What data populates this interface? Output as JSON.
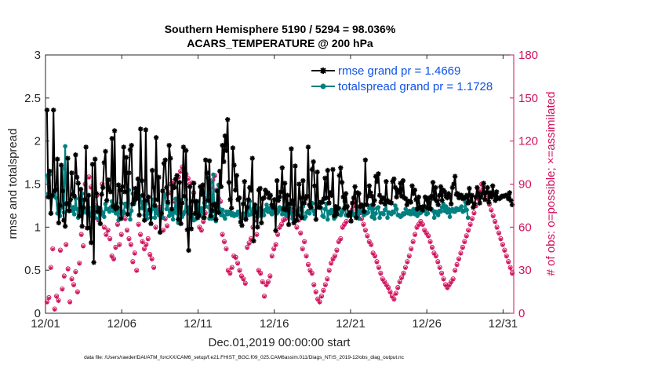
{
  "chart_data": {
    "type": "line",
    "title_line1": "Southern Hemisphere 5190 / 5294 = 98.036%",
    "title_line2": "ACARS_TEMPERATURE @ 200 hPa",
    "xlabel": "Dec.01,2019 00:00:00 start",
    "ylabel_left": "rmse and totalspread",
    "ylabel_right": "# of obs: o=possible; ×=assimilated",
    "footnote": "data file: /Users/raeder/DAI/ATM_forcXX/CAM6_setup/f.e21.FHIST_BGC.f09_025.CAM6assim.011/Diags_NTrS_2019-12/obs_diag_output.nc",
    "x_ticks": [
      0,
      5,
      10,
      15,
      20,
      25,
      30
    ],
    "x_tick_labels": [
      "12/01",
      "12/06",
      "12/11",
      "12/16",
      "12/21",
      "12/26",
      "12/31"
    ],
    "xlim": [
      0,
      30.7
    ],
    "ylim_left": [
      0,
      3
    ],
    "y_ticks_left": [
      0,
      0.5,
      1,
      1.5,
      2,
      2.5,
      3
    ],
    "y_tick_labels_left": [
      "0",
      "0.5",
      "1",
      "1.5",
      "2",
      "2.5",
      "3"
    ],
    "ylim_right": [
      0,
      180
    ],
    "y_ticks_right": [
      0,
      30,
      60,
      90,
      120,
      150,
      180
    ],
    "y_tick_labels_right": [
      "0",
      "30",
      "60",
      "90",
      "120",
      "150",
      "180"
    ],
    "legend_location": "top-right",
    "colors": {
      "rmse": "#000000",
      "spread": "#008080",
      "obs": "#d0115c",
      "legend_text": "#0f52e6"
    },
    "series": [
      {
        "name": "rmse grand pr = 1.4669",
        "key": "rmse",
        "values": [
          2.36,
          1.35,
          1.65,
          1.16,
          1.37,
          2.36,
          1.42,
          1.44,
          1.79,
          1.05,
          1.25,
          1.72,
          1.42,
          1.08,
          1.01,
          1.27,
          1.8,
          1.19,
          1.32,
          1.63,
          1.38,
          1.36,
          1.84,
          1.58,
          1.51,
          1.13,
          1.44,
          1.01,
          1.23,
          1.32,
          1.93,
          0.99,
          1.37,
          0.99,
          0.82,
          1.73,
          0.59,
          1.79,
          1.39,
          1.18,
          1.22,
          1.04,
          1.38,
          1.46,
          1.75,
          1.88,
          1.31,
          1.55,
          1.44,
          1.41,
          2.03,
          1.24,
          2.12,
          1.21,
          1.23,
          1.49,
          1.43,
          1.1,
          1.47,
          1.93,
          1.41,
          1.81,
          1.15,
          1.63,
          1.9,
          1.95,
          1.27,
          1.3,
          1.45,
          1.33,
          1.56,
          1.14,
          2.14,
          1.54,
          1.37,
          1.08,
          2.13,
          1.31,
          1.35,
          1.2,
          1.04,
          1.66,
          1.46,
          1.25,
          2.04,
          1.32,
          1.58,
          0.94,
          1.16,
          1.42,
          1.74,
          1.78,
          1.46,
          1.29,
          1.95,
          1.8,
          1.21,
          1.48,
          1.46,
          1.56,
          1.6,
          1.09,
          1.52,
          1.04,
          1.28,
          1.93,
          1.36,
          1.89,
          0.97,
          0.73,
          1.47,
          0.98,
          1.3,
          1.51,
          1.16,
          1.3,
          1.11,
          1.14,
          1.47,
          1.38,
          1.49,
          1.11,
          1.78,
          1.63,
          1.31,
          1.77,
          1.13,
          1.19,
          1.26,
          1.27,
          1.09,
          1.42,
          1.17,
          1.65,
          1.47,
          1.95,
          1.76,
          2.06,
          1.89,
          2.25,
          1.52,
          1.32,
          1.22,
          1.92,
          1.72,
          1.43,
          1.6,
          1.32,
          1.34,
          1.06,
          1.02,
          1.27,
          1.53,
          1.09,
          1.23,
          1.32,
          1.46,
          1.43,
          1.8,
          0.84,
          1.26,
          1.17,
          1.0,
          1.43,
          1.45,
          1.05,
          1.33,
          1.34,
          1.43,
          1.39,
          1.4,
          1.34,
          1.37,
          1.26,
          1.23,
          1.32,
          0.96,
          1.54,
          1.31,
          1.35,
          1.41,
          1.69,
          1.21,
          1.51,
          1.2,
          1.37,
          1.03,
          1.27,
          1.91,
          1.31,
          1.05,
          1.71,
          1.08,
          1.14,
          1.5,
          1.34,
          1.11,
          1.54,
          1.28,
          1.33,
          1.36,
          1.93,
          1.26,
          1.23,
          1.67,
          1.76,
          1.48,
          1.09,
          1.64,
          1.23,
          1.23,
          1.29,
          1.29,
          1.33,
          1.57,
          1.34,
          1.66,
          1.28,
          1.4,
          1.37,
          1.67,
          1.13,
          1.24,
          1.15,
          1.22,
          1.6,
          1.69,
          1.52,
          1.35,
          1.22,
          1.39,
          1.24,
          1.14,
          1.17,
          1.07,
          1.28,
          1.34,
          1.47,
          1.11,
          1.4,
          1.39,
          1.24,
          1.26,
          1.24,
          1.18,
          1.78,
          1.26,
          1.36,
          1.48,
          1.4,
          1.36,
          1.26,
          1.31,
          1.59,
          1.53,
          1.62,
          1.37,
          1.29,
          1.33,
          1.34,
          1.27,
          1.53,
          1.31,
          1.29,
          1.29,
          1.28,
          1.53,
          1.56,
          1.46,
          1.35,
          1.43,
          1.4,
          1.51,
          1.36,
          1.54,
          1.34,
          1.33,
          1.26,
          1.3,
          1.3,
          1.29,
          1.48,
          1.39,
          1.43,
          1.32,
          1.21,
          1.35,
          1.23,
          1.23,
          1.2,
          1.24,
          1.35,
          1.32,
          1.22,
          1.34,
          1.21,
          1.36,
          1.52,
          1.33,
          1.46,
          1.3,
          1.26,
          1.37,
          1.47,
          1.31,
          1.43,
          1.41,
          1.36,
          1.34,
          1.39,
          1.36,
          1.27,
          1.46,
          1.5,
          1.59,
          1.38,
          1.39,
          1.34,
          1.37,
          1.37,
          1.33,
          1.34,
          1.34,
          1.37,
          1.28,
          1.45,
          1.3,
          1.37,
          1.23,
          1.27,
          1.35,
          1.46,
          1.39,
          1.28,
          1.35,
          1.39,
          1.51,
          1.32,
          1.4,
          1.46,
          1.29,
          1.4,
          1.35,
          1.48,
          1.38,
          1.31,
          1.41,
          1.34,
          1.33,
          1.34,
          1.36,
          1.36,
          1.36,
          1.37,
          1.37,
          1.33,
          1.4,
          1.31,
          1.26
        ]
      },
      {
        "name": "totalspread grand pr = 1.1728",
        "key": "spread",
        "values": [
          1.6,
          1.39,
          1.61,
          1.16,
          1.36,
          1.36,
          1.38,
          1.34,
          1.16,
          1.26,
          1.13,
          1.23,
          1.68,
          1.17,
          1.94,
          1.28,
          1.28,
          1.19,
          1.32,
          1.19,
          1.23,
          1.15,
          1.33,
          1.21,
          1.11,
          1.17,
          1.15,
          1.39,
          1.17,
          1.21,
          1.18,
          1.16,
          1.23,
          1.16,
          1.13,
          1.2,
          1.13,
          1.11,
          1.2,
          1.23,
          1.1,
          1.22,
          1.15,
          1.17,
          1.12,
          1.27,
          1.21,
          1.21,
          1.18,
          1.23,
          1.3,
          1.19,
          1.26,
          1.16,
          1.16,
          1.08,
          1.2,
          1.28,
          1.14,
          1.18,
          1.27,
          1.24,
          1.28,
          1.43,
          1.09,
          1.19,
          1.39,
          1.27,
          1.4,
          1.38,
          1.35,
          1.35,
          1.36,
          1.22,
          1.29,
          1.14,
          1.27,
          1.1,
          1.16,
          1.16,
          1.11,
          1.21,
          1.32,
          1.11,
          1.22,
          1.16,
          1.14,
          1.18,
          1.13,
          1.11,
          1.36,
          1.38,
          1.21,
          1.27,
          1.13,
          1.17,
          1.15,
          1.09,
          1.18,
          1.33,
          1.16,
          1.05,
          1.32,
          1.16,
          1.12,
          1.15,
          1.18,
          1.32,
          1.23,
          1.16,
          1.23,
          1.12,
          1.14,
          1.08,
          1.09,
          1.16,
          1.3,
          1.13,
          1.18,
          1.22,
          1.11,
          1.28,
          1.24,
          1.31,
          1.57,
          1.1,
          1.52,
          1.1,
          1.61,
          1.12,
          1.07,
          1.27,
          1.49,
          1.21,
          1.14,
          1.2,
          1.13,
          1.1,
          1.18,
          1.15,
          1.18,
          1.17,
          1.14,
          1.16,
          1.13,
          1.15,
          1.14,
          1.18,
          1.16,
          1.11,
          1.12,
          1.16,
          1.11,
          1.1,
          1.19,
          1.14,
          1.3,
          1.15,
          1.18,
          1.22,
          1.18,
          1.22,
          1.12,
          1.14,
          1.22,
          1.13,
          1.19,
          1.14,
          1.2,
          1.26,
          1.18,
          1.22,
          1.17,
          1.15,
          1.2,
          1.18,
          1.21,
          1.16,
          1.18,
          1.23,
          1.21,
          1.15,
          1.23,
          1.18,
          1.14,
          1.16,
          1.19,
          1.22,
          1.16,
          1.1,
          1.26,
          1.16,
          1.18,
          1.16,
          1.2,
          1.22,
          1.13,
          1.24,
          1.1,
          1.12,
          1.17,
          1.19,
          1.16,
          1.25,
          1.28,
          1.19,
          1.15,
          1.27,
          1.26,
          1.24,
          1.29,
          1.22,
          1.13,
          1.12,
          1.21,
          1.27,
          1.09,
          1.18,
          1.16,
          1.2,
          1.17,
          1.1,
          1.12,
          1.17,
          1.21,
          1.22,
          1.14,
          1.17,
          1.2,
          1.3,
          1.14,
          1.14,
          1.14,
          1.17,
          1.17,
          1.17,
          1.14,
          1.15,
          1.14,
          1.19,
          1.1,
          1.2,
          1.19,
          1.16,
          1.14,
          1.18,
          1.16,
          1.17,
          1.22,
          1.25,
          1.12,
          1.21,
          1.1,
          1.16,
          1.22,
          1.23,
          1.11,
          1.16,
          1.16,
          1.15,
          1.2,
          1.29,
          1.11,
          1.17,
          1.16,
          1.15,
          1.18,
          1.17,
          1.25,
          1.21,
          1.14,
          1.14,
          1.12,
          1.13,
          1.16,
          1.15,
          1.21,
          1.17,
          1.16,
          1.19,
          1.15,
          1.17,
          1.21,
          1.15,
          1.21,
          1.13,
          1.18,
          1.16,
          1.17,
          1.2,
          1.19,
          1.24,
          1.15,
          1.16,
          1.26,
          1.22,
          1.21,
          1.19,
          1.11,
          1.18,
          1.17,
          1.14,
          1.19,
          1.18,
          1.23,
          1.27,
          1.19,
          1.24,
          1.17,
          1.21,
          1.12,
          1.19,
          1.21,
          1.18,
          1.18,
          1.22,
          1.2,
          1.2,
          1.22,
          1.24,
          1.18,
          1.19,
          1.29,
          1.2,
          1.11
        ]
      },
      {
        "name": "obs possible",
        "key": "possible",
        "values": [
          8,
          11,
          32,
          45,
          3,
          12,
          9,
          44,
          17,
          26,
          48,
          31,
          8,
          24,
          20,
          29,
          15,
          35,
          55,
          47,
          90,
          80,
          95,
          88,
          70,
          75,
          82,
          65,
          72,
          90,
          60,
          55,
          58,
          52,
          40,
          38,
          46,
          62,
          48,
          55,
          70,
          66,
          58,
          52,
          48,
          36,
          42,
          30,
          62,
          55,
          50,
          45,
          48,
          52,
          41,
          38,
          32,
          60,
          72,
          74,
          68,
          58,
          66,
          61,
          84,
          90,
          92,
          78,
          74,
          95,
          99,
          102,
          98,
          97,
          94,
          90,
          91,
          84,
          78,
          72,
          60,
          58,
          64,
          70,
          80,
          74,
          88,
          93,
          96,
          86,
          80,
          78,
          55,
          50,
          45,
          30,
          28,
          32,
          40,
          39,
          35,
          30,
          26,
          24,
          21,
          46,
          49,
          52,
          60,
          65,
          55,
          30,
          28,
          22,
          12,
          20,
          22,
          26,
          40,
          45,
          48,
          55,
          60,
          62,
          65,
          66,
          68,
          70,
          72,
          68,
          66,
          60,
          65,
          56,
          45,
          50,
          40,
          34,
          30,
          28,
          20,
          15,
          10,
          8,
          12,
          16,
          20,
          24,
          30,
          35,
          38,
          40,
          44,
          50,
          52,
          60,
          62,
          64,
          68,
          70,
          72,
          75,
          78,
          74,
          70,
          66,
          62,
          58,
          54,
          50,
          48,
          42,
          40,
          36,
          32,
          28,
          24,
          22,
          20,
          18,
          15,
          12,
          10,
          14,
          18,
          22,
          25,
          28,
          32,
          36,
          40,
          45,
          50,
          55,
          60,
          62,
          64,
          62,
          58,
          56,
          54,
          50,
          46,
          42,
          40,
          36,
          32,
          28,
          24,
          20,
          18,
          20,
          22,
          24,
          30,
          34,
          38,
          42,
          46,
          50,
          54,
          58,
          62,
          66,
          70,
          75,
          80,
          86,
          90,
          88,
          84,
          80,
          76,
          72,
          68,
          64,
          60,
          56,
          52,
          48,
          44,
          40,
          36,
          32,
          28
        ]
      }
    ]
  },
  "legend": {
    "rmse_label": "rmse grand pr = 1.4669",
    "spread_label": "totalspread grand pr = 1.1728"
  }
}
